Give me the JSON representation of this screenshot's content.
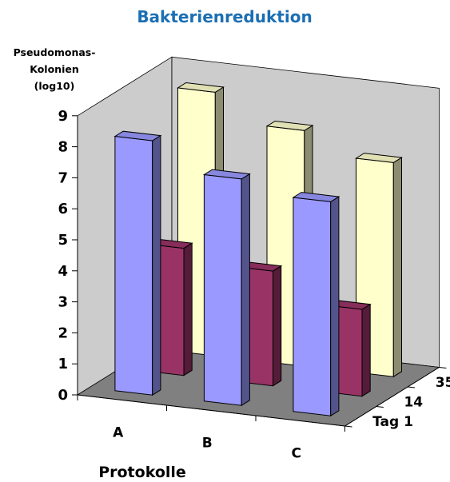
{
  "chart_data": {
    "type": "bar",
    "subtype": "3d-column",
    "title": "Bakterienreduktion",
    "ylabel": [
      "Pseudomonas-",
      "Kolonien",
      "(log10)"
    ],
    "xlabel": "Protokolle",
    "zlabel": "",
    "categories": [
      "A",
      "B",
      "C"
    ],
    "depth_categories": [
      "Tag 1",
      "14",
      "35"
    ],
    "yticks": [
      "0",
      "1",
      "2",
      "3",
      "4",
      "5",
      "6",
      "7",
      "8",
      "9"
    ],
    "ylim": [
      0,
      9
    ],
    "grid": false,
    "legend": "none",
    "series": [
      {
        "depth": "Tag 1",
        "color": "#9999ff",
        "values": [
          8.2,
          7.3,
          6.9
        ]
      },
      {
        "depth": "14",
        "color": "#993366",
        "values": [
          4.1,
          3.7,
          2.8
        ]
      },
      {
        "depth": "35",
        "color": "#ffffcc",
        "values": [
          8.5,
          7.6,
          6.9
        ]
      }
    ],
    "colors": {
      "back_wall": "#cccccc",
      "floor": "#808080",
      "title": "#1b6fb3"
    }
  }
}
